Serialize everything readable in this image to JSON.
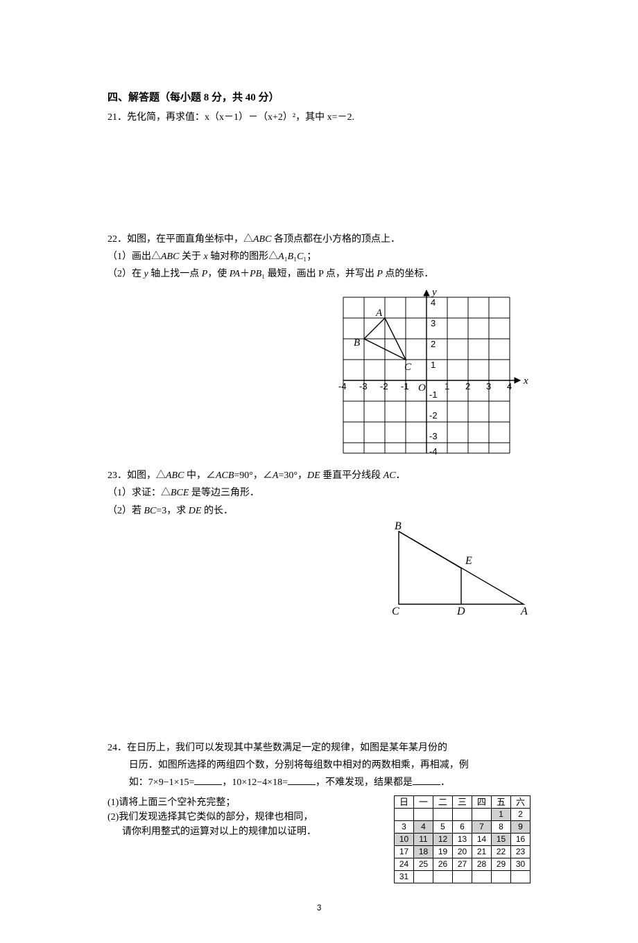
{
  "section4": {
    "title": "四、解答题（每小题 8 分，共 40 分）"
  },
  "q21": {
    "num": "21．",
    "text": "先化简，再求值：x（x－1）－（x+2）²，其中 x=－2."
  },
  "q22": {
    "num": "22．",
    "text": "如图，在平面直角坐标中，△ABC 各顶点都在小方格的顶点上．",
    "sub1": "（1）画出△ABC 关于 x 轴对称的图形△A₁B₁C₁；",
    "sub2": "（2）在 y 轴上找一点 P，使 PA＋PB₁ 最短，画出 P 点，并写出 P 点的坐标．",
    "labels": {
      "A": "A",
      "B": "B",
      "C": "C",
      "O": "O",
      "x": "x",
      "y": "y",
      "n4": "4",
      "n3": "3",
      "n2": "2",
      "n1": "1",
      "m1": "-1",
      "m2": "-2",
      "m3": "-3",
      "m4": "-4"
    }
  },
  "q23": {
    "num": "23．",
    "text": "如图，△ABC 中，∠ACB=90°，∠A=30°，DE 垂直平分线段 AC．",
    "sub1": "（1）求证：△BCE 是等边三角形．",
    "sub2": "（2）若 BC=3，求 DE 的长．",
    "labels": {
      "B": "B",
      "C": "C",
      "D": "D",
      "A": "A",
      "E": "E"
    }
  },
  "q24": {
    "num": "24．",
    "line1": "在日历上，我们可以发现其中某些数满足一定的规律，如图是某年某月份的",
    "line2": "日历．如图所选择的两组四个数，分别将每组数中相对的两数相乘，再相减，例",
    "line3a": "如：7×9−1×15=",
    "line3b": "，10×12−4×18=",
    "line3c": "，不难发现，结果都是",
    "line3d": "．",
    "sub1": "(1)请将上面三个空补充完整；",
    "sub2a": "(2)我们发现选择其它类似的部分，规律也相同，",
    "sub2b": "请你利用整式的运算对以上的规律加以证明．",
    "cal": {
      "head": [
        "日",
        "一",
        "二",
        "三",
        "四",
        "五",
        "六"
      ],
      "rows": [
        [
          "",
          "",
          "",
          "",
          "",
          "1",
          "2"
        ],
        [
          "3",
          "4",
          "5",
          "6",
          "7",
          "8",
          "9"
        ],
        [
          "10",
          "11",
          "12",
          "13",
          "14",
          "15",
          "16"
        ],
        [
          "17",
          "18",
          "19",
          "20",
          "21",
          "22",
          "23"
        ],
        [
          "24",
          "25",
          "26",
          "27",
          "28",
          "29",
          "30"
        ],
        [
          "31",
          "",
          "",
          "",
          "",
          "",
          ""
        ]
      ],
      "shaded": [
        "1",
        "4",
        "7",
        "9",
        "10",
        "11",
        "12",
        "15",
        "18"
      ]
    }
  },
  "pagenum": "3"
}
